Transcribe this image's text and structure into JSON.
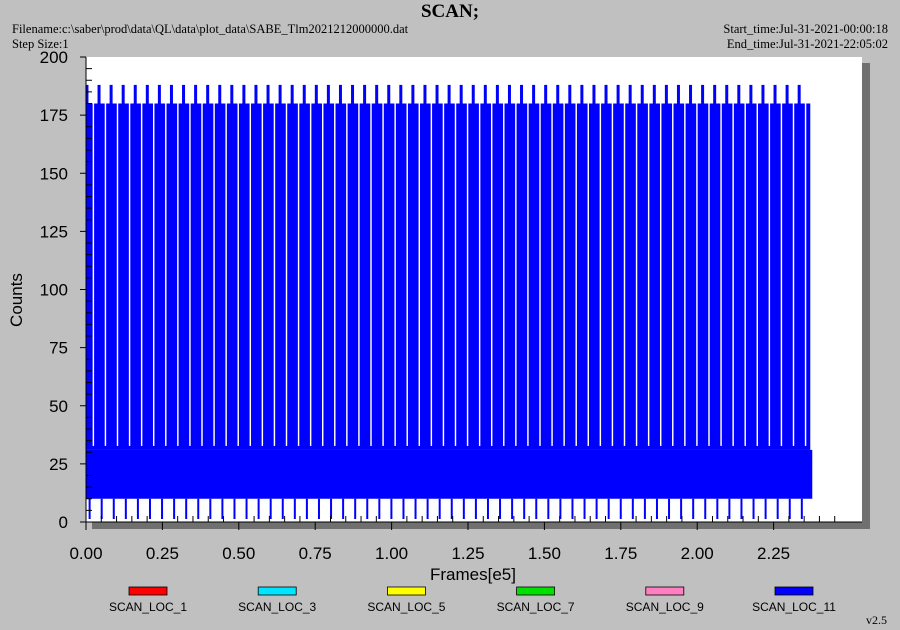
{
  "header": {
    "title": "SCAN;",
    "filename": "Filename:c:\\saber\\prod\\data\\QL\\data\\plot_data\\SABE_Tlm2021212000000.dat",
    "step_size": "Step Size:1",
    "start_time": "Start_time:Jul-31-2021-00:00:18",
    "end_time": "End_time:Jul-31-2021-22:05:02",
    "version": "v2.5"
  },
  "chart_data": {
    "type": "line",
    "title": "SCAN;",
    "xlabel": "Frames[e5]",
    "ylabel": "Counts",
    "xlim": [
      0,
      2.5
    ],
    "ylim": [
      0,
      200
    ],
    "x_ticks": [
      "0.00",
      "0.25",
      "0.50",
      "0.75",
      "1.00",
      "1.25",
      "1.50",
      "1.75",
      "2.00",
      "2.25"
    ],
    "y_ticks": [
      "0",
      "25",
      "50",
      "75",
      "100",
      "125",
      "150",
      "175",
      "200"
    ],
    "legend": [
      {
        "name": "SCAN_LOC_1",
        "color": "#ff0000"
      },
      {
        "name": "SCAN_LOC_3",
        "color": "#00e5ff"
      },
      {
        "name": "SCAN_LOC_5",
        "color": "#ffff00"
      },
      {
        "name": "SCAN_LOC_7",
        "color": "#00e000"
      },
      {
        "name": "SCAN_LOC_9",
        "color": "#ff80c0"
      },
      {
        "name": "SCAN_LOC_11",
        "color": "#0000ff"
      }
    ],
    "dominant_series": {
      "name": "SCAN_LOC_11",
      "x_range": [
        0,
        2.37
      ],
      "scan_top_values": [
        188,
        180
      ],
      "band_range": [
        10,
        31
      ],
      "scan_cycles": 60
    }
  }
}
